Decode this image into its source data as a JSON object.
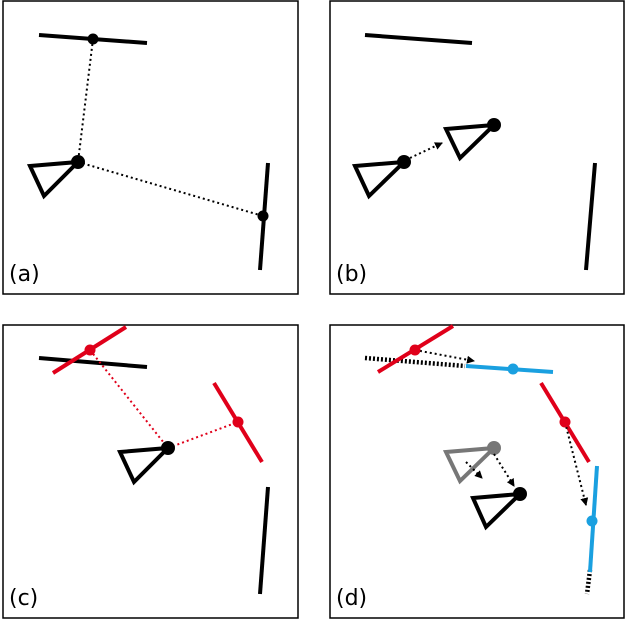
{
  "panels": {
    "a": {
      "label": "(a)"
    },
    "b": {
      "label": "(b)"
    },
    "c": {
      "label": "(c)"
    },
    "d": {
      "label": "(d)"
    }
  },
  "colors": {
    "black": "#000000",
    "red": "#e0001a",
    "blue": "#1aa0e0",
    "grey": "#777777"
  }
}
